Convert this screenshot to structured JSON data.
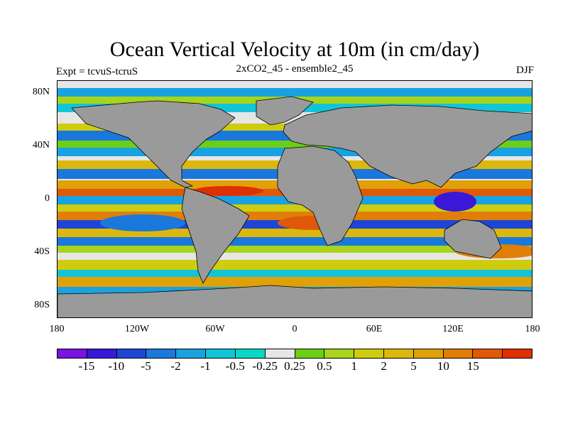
{
  "title": "Ocean Vertical Velocity at 10m (in cm/day)",
  "subtitle_left": "Expt = tcvuS-tcruS",
  "subtitle_center": "2xCO2_45 - ensemble2_45",
  "season": "DJF",
  "y_ticks": [
    "80N",
    "40N",
    "0",
    "40S",
    "80S"
  ],
  "x_ticks": [
    "180",
    "120W",
    "60W",
    "0",
    "60E",
    "120E",
    "180"
  ],
  "colorbar": {
    "colors": [
      "#7a12e0",
      "#3a18d8",
      "#1e46d6",
      "#1a78dc",
      "#1aa2e0",
      "#12c4d8",
      "#0ad6c4",
      "#e6e6e6",
      "#6ccf16",
      "#a8d41a",
      "#cfcc10",
      "#dcb80e",
      "#e0a008",
      "#e07e08",
      "#e05808",
      "#de3004"
    ],
    "labels": [
      "-15",
      "-10",
      "-5",
      "-2",
      "-1",
      "-0.5",
      "-0.25",
      "0.25",
      "0.5",
      "1",
      "2",
      "5",
      "10",
      "15"
    ]
  },
  "land_color": "#9a9a9a"
}
